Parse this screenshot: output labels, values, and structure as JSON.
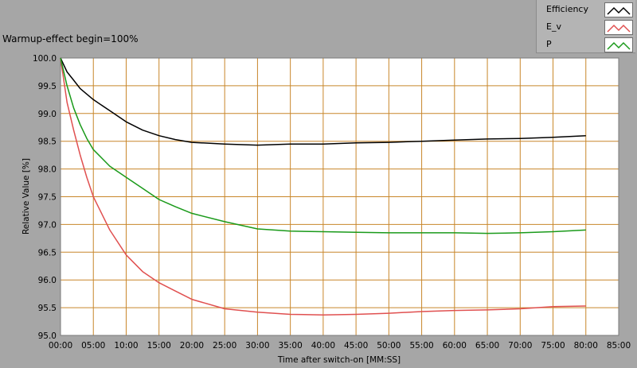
{
  "chart_data": {
    "type": "line",
    "title": "Warmup-effect begin=100%",
    "xlabel": "Time after switch-on [MM:SS]",
    "ylabel": "Relative Value [%]",
    "x_unit": "minutes",
    "xlim": [
      0,
      85
    ],
    "ylim": [
      95.0,
      100.0
    ],
    "grid": true,
    "legend_position": "top-right",
    "x_ticks": [
      "00:00",
      "05:00",
      "10:00",
      "15:00",
      "20:00",
      "25:00",
      "30:00",
      "35:00",
      "40:00",
      "45:00",
      "50:00",
      "55:00",
      "60:00",
      "65:00",
      "70:00",
      "75:00",
      "80:00",
      "85:00"
    ],
    "y_ticks": [
      "100.0",
      "99.5",
      "99.0",
      "98.5",
      "98.0",
      "97.5",
      "97.0",
      "96.5",
      "96.0",
      "95.5",
      "95.0"
    ],
    "x": [
      0,
      1,
      2,
      3,
      4,
      5,
      7.5,
      10,
      12.5,
      15,
      17.5,
      20,
      25,
      30,
      35,
      40,
      45,
      50,
      55,
      60,
      65,
      70,
      75,
      80
    ],
    "series": [
      {
        "name": "Efficiency",
        "color": "#000000",
        "values": [
          100.0,
          99.75,
          99.6,
          99.45,
          99.35,
          99.25,
          99.05,
          98.85,
          98.7,
          98.6,
          98.53,
          98.48,
          98.45,
          98.43,
          98.45,
          98.45,
          98.47,
          98.48,
          98.5,
          98.52,
          98.54,
          98.55,
          98.57,
          98.6
        ]
      },
      {
        "name": "E_v",
        "color": "#e05050",
        "values": [
          100.0,
          99.2,
          98.7,
          98.25,
          97.85,
          97.5,
          96.9,
          96.45,
          96.15,
          95.95,
          95.8,
          95.65,
          95.48,
          95.42,
          95.38,
          95.37,
          95.38,
          95.4,
          95.43,
          95.45,
          95.46,
          95.48,
          95.52,
          95.53
        ]
      },
      {
        "name": "P",
        "color": "#1a9a1a",
        "values": [
          100.0,
          99.5,
          99.1,
          98.8,
          98.55,
          98.35,
          98.05,
          97.85,
          97.65,
          97.45,
          97.32,
          97.2,
          97.05,
          96.92,
          96.88,
          96.87,
          96.86,
          96.85,
          96.85,
          96.85,
          96.84,
          96.85,
          96.87,
          96.9
        ]
      }
    ]
  }
}
